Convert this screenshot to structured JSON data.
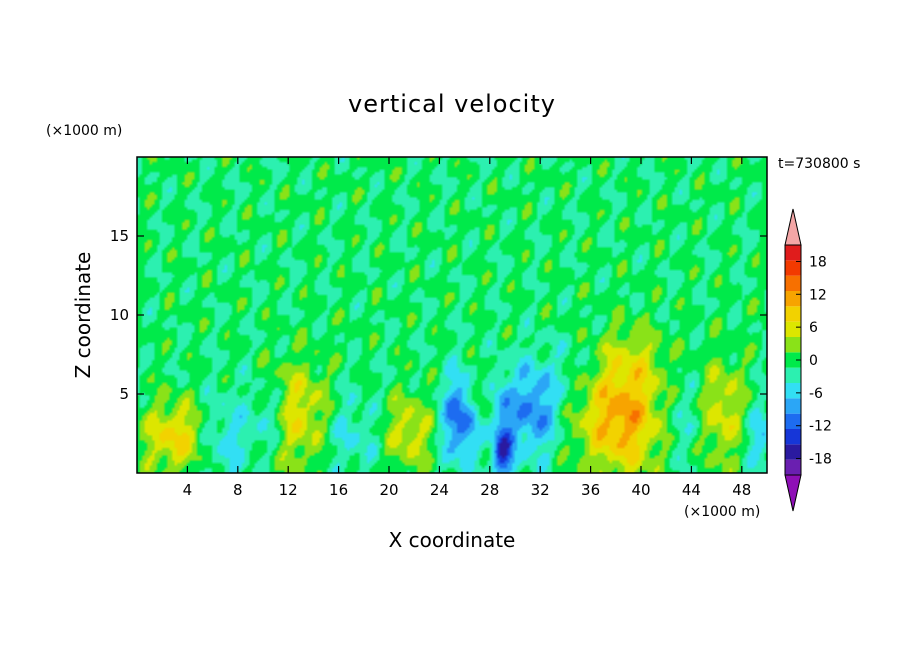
{
  "chart_data": {
    "type": "heatmap",
    "title": "vertical velocity",
    "xlabel": "X coordinate",
    "ylabel": "Z coordinate",
    "x_unit": "(×1000 m)",
    "y_unit": "(×1000 m)",
    "time_label": "t=730800 s",
    "xlim": [
      0,
      50
    ],
    "ylim": [
      0,
      20
    ],
    "x_ticks": [
      4,
      8,
      12,
      16,
      20,
      24,
      28,
      32,
      36,
      40,
      44,
      48
    ],
    "y_ticks": [
      5,
      10,
      15
    ],
    "colorbar": {
      "levels": [
        -21,
        -18,
        -15,
        -12,
        -9,
        -6,
        -3,
        0,
        3,
        6,
        9,
        12,
        15,
        18,
        21
      ],
      "tick_labels": [
        "18",
        "12",
        "6",
        "0",
        "-6",
        "-12",
        "-18"
      ],
      "tick_values": [
        18,
        12,
        6,
        0,
        -6,
        -12,
        -18
      ],
      "colors": [
        "#6a1fb0",
        "#2a1aa0",
        "#1636d8",
        "#1d6cf0",
        "#2ba6f6",
        "#32dff4",
        "#2cf0b0",
        "#00ea4a",
        "#8ae218",
        "#dde600",
        "#f2d200",
        "#f7a400",
        "#f77000",
        "#f23a00",
        "#e01c1c"
      ],
      "over_color": "#f4a6a6",
      "under_color": "#8e0fb6"
    },
    "cells": [
      {
        "x": 3,
        "z": 2.3,
        "sx": 1.8,
        "sz": 1.6,
        "w": 9
      },
      {
        "x": 13,
        "z": 3.6,
        "sx": 1.6,
        "sz": 2.4,
        "w": 8
      },
      {
        "x": 21.5,
        "z": 2.6,
        "sx": 1.5,
        "sz": 1.7,
        "w": 7
      },
      {
        "x": 27.2,
        "z": 4.8,
        "sx": 0.5,
        "sz": 0.9,
        "w": 5
      },
      {
        "x": 38.5,
        "z": 3.6,
        "sx": 2.4,
        "sz": 2.6,
        "w": 13
      },
      {
        "x": 46.5,
        "z": 3.8,
        "sx": 1.2,
        "sz": 2.4,
        "w": 7
      },
      {
        "x": 39.5,
        "z": 7.5,
        "sx": 1.8,
        "sz": 1.5,
        "w": 3
      },
      {
        "x": 7,
        "z": 2.2,
        "sx": 1.5,
        "sz": 2.0,
        "w": -5
      },
      {
        "x": 10.5,
        "z": 3.5,
        "sx": 1.0,
        "sz": 1.3,
        "w": -4
      },
      {
        "x": 17,
        "z": 2.5,
        "sx": 2.0,
        "sz": 1.8,
        "w": -4
      },
      {
        "x": 25.6,
        "z": 3.4,
        "sx": 1.0,
        "sz": 1.9,
        "w": -12
      },
      {
        "x": 29,
        "z": 1.2,
        "sx": 0.6,
        "sz": 1.2,
        "w": -14
      },
      {
        "x": 31.5,
        "z": 4.0,
        "sx": 1.4,
        "sz": 2.1,
        "w": -10
      },
      {
        "x": 29,
        "z": 4.2,
        "sx": 0.6,
        "sz": 1.5,
        "w": -6
      },
      {
        "x": 43,
        "z": 3.4,
        "sx": 1.3,
        "sz": 2.0,
        "w": -4
      },
      {
        "x": 49.5,
        "z": 2.2,
        "sx": 0.8,
        "sz": 1.4,
        "w": -6
      },
      {
        "x": 35,
        "z": 6.5,
        "sx": 1.5,
        "sz": 1.5,
        "w": -2.5
      }
    ]
  }
}
